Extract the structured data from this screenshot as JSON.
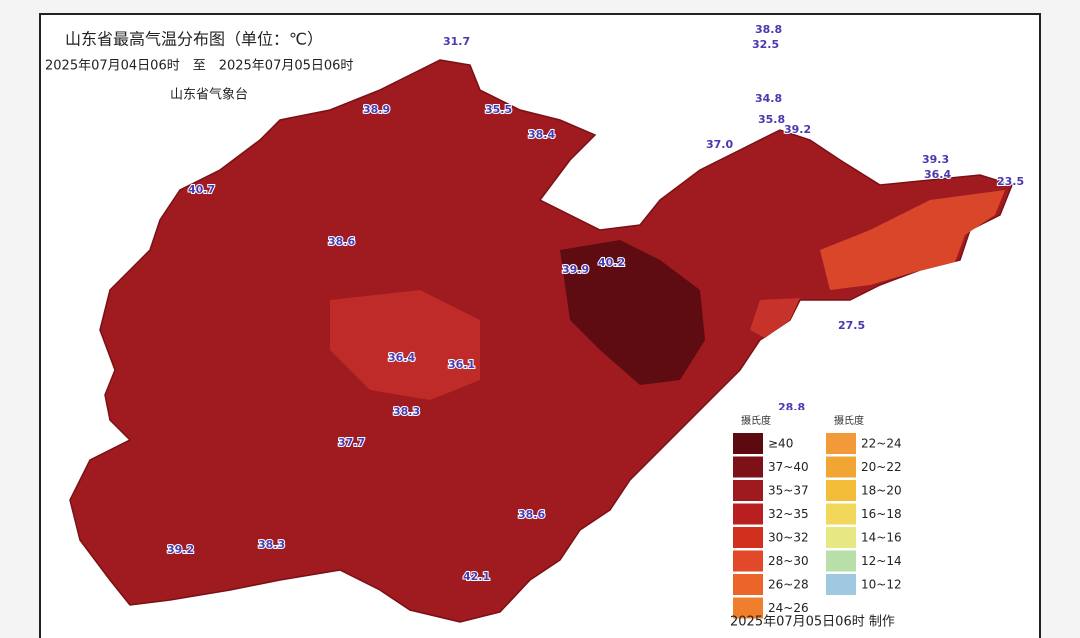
{
  "header": {
    "title": "山东省最高气温分布图（单位：℃）",
    "period": "2025年07月04日06时　至　2025年07月05日06时",
    "issuer": "山东省气象台"
  },
  "legend": {
    "columns": [
      {
        "title": "摄氏度",
        "entries": [
          {
            "label": "≥40",
            "color": "#5c0a10"
          },
          {
            "label": "37~40",
            "color": "#7e1018"
          },
          {
            "label": "35~37",
            "color": "#9e1a1f"
          },
          {
            "label": "32~35",
            "color": "#b8201f"
          },
          {
            "label": "30~32",
            "color": "#d1301f"
          },
          {
            "label": "28~30",
            "color": "#e2492a"
          },
          {
            "label": "26~28",
            "color": "#ec6528"
          },
          {
            "label": "24~26",
            "color": "#f07f2d"
          }
        ]
      },
      {
        "title": "摄氏度",
        "entries": [
          {
            "label": "22~24",
            "color": "#f29a3a"
          },
          {
            "label": "20~22",
            "color": "#f1a532"
          },
          {
            "label": "18~20",
            "color": "#f3bd3a"
          },
          {
            "label": "16~18",
            "color": "#f2d85a"
          },
          {
            "label": "14~16",
            "color": "#e6e884"
          },
          {
            "label": "12~14",
            "color": "#b9dfa8"
          },
          {
            "label": "10~12",
            "color": "#9fc9e0"
          }
        ]
      }
    ]
  },
  "stations": [
    "31.7",
    "38.8",
    "32.5",
    "34.8",
    "35.8",
    "39.2",
    "37.0",
    "39.3",
    "36.4",
    "23.5",
    "35.5",
    "38.4",
    "40.7",
    "27.5",
    "28.8",
    "38.9",
    "39.9",
    "40.2",
    "37.7",
    "36.1",
    "38.6",
    "36.4",
    "38.3",
    "42.1",
    "38.3",
    "38.6",
    "39.2"
  ],
  "footer": "2025年07月05日06时 制作"
}
